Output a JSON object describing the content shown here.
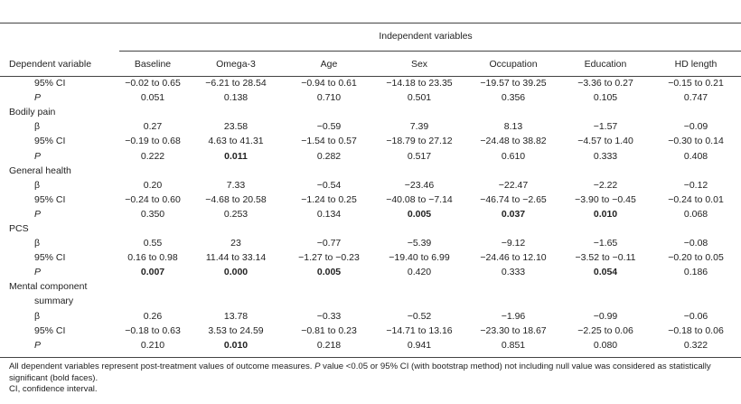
{
  "header": {
    "independent_label": "Independent variables",
    "dependent_label": "Dependent variable",
    "columns": [
      "Baseline",
      "Omega-3",
      "Age",
      "Sex",
      "Occupation",
      "Education",
      "HD length"
    ]
  },
  "rows": [
    {
      "type": "stat",
      "label": "95% CI",
      "italic": false,
      "values": [
        "−0.02 to 0.65",
        "−6.21 to 28.54",
        "−0.94 to 0.61",
        "−14.18 to 23.35",
        "−19.57 to 39.25",
        "−3.36 to 0.27",
        "−0.15 to 0.21"
      ],
      "bold": [
        false,
        false,
        false,
        false,
        false,
        false,
        false
      ]
    },
    {
      "type": "stat",
      "label": "P",
      "italic": true,
      "values": [
        "0.051",
        "0.138",
        "0.710",
        "0.501",
        "0.356",
        "0.105",
        "0.747"
      ],
      "bold": [
        false,
        false,
        false,
        false,
        false,
        false,
        false
      ]
    },
    {
      "type": "section",
      "label": "Bodily pain"
    },
    {
      "type": "stat",
      "label": "β",
      "italic": false,
      "values": [
        "0.27",
        "23.58",
        "−0.59",
        "7.39",
        "8.13",
        "−1.57",
        "−0.09"
      ],
      "bold": [
        false,
        false,
        false,
        false,
        false,
        false,
        false
      ]
    },
    {
      "type": "stat",
      "label": "95% CI",
      "italic": false,
      "values": [
        "−0.19 to 0.68",
        "4.63 to 41.31",
        "−1.54 to 0.57",
        "−18.79 to 27.12",
        "−24.48 to 38.82",
        "−4.57 to 1.40",
        "−0.30 to 0.14"
      ],
      "bold": [
        false,
        false,
        false,
        false,
        false,
        false,
        false
      ]
    },
    {
      "type": "stat",
      "label": "P",
      "italic": true,
      "values": [
        "0.222",
        "0.011",
        "0.282",
        "0.517",
        "0.610",
        "0.333",
        "0.408"
      ],
      "bold": [
        false,
        true,
        false,
        false,
        false,
        false,
        false
      ]
    },
    {
      "type": "section",
      "label": "General health"
    },
    {
      "type": "stat",
      "label": "β",
      "italic": false,
      "values": [
        "0.20",
        "7.33",
        "−0.54",
        "−23.46",
        "−22.47",
        "−2.22",
        "−0.12"
      ],
      "bold": [
        false,
        false,
        false,
        false,
        false,
        false,
        false
      ]
    },
    {
      "type": "stat",
      "label": "95% CI",
      "italic": false,
      "values": [
        "−0.24 to 0.60",
        "−4.68 to 20.58",
        "−1.24 to 0.25",
        "−40.08 to −7.14",
        "−46.74 to −2.65",
        "−3.90 to −0.45",
        "−0.24 to 0.01"
      ],
      "bold": [
        false,
        false,
        false,
        false,
        false,
        false,
        false
      ]
    },
    {
      "type": "stat",
      "label": "P",
      "italic": true,
      "values": [
        "0.350",
        "0.253",
        "0.134",
        "0.005",
        "0.037",
        "0.010",
        "0.068"
      ],
      "bold": [
        false,
        false,
        false,
        true,
        true,
        true,
        false
      ]
    },
    {
      "type": "section",
      "label": "PCS"
    },
    {
      "type": "stat",
      "label": "β",
      "italic": false,
      "values": [
        "0.55",
        "23",
        "−0.77",
        "−5.39",
        "−9.12",
        "−1.65",
        "−0.08"
      ],
      "bold": [
        false,
        false,
        false,
        false,
        false,
        false,
        false
      ]
    },
    {
      "type": "stat",
      "label": "95% CI",
      "italic": false,
      "values": [
        "0.16 to 0.98",
        "11.44 to 33.14",
        "−1.27 to −0.23",
        "−19.40 to 6.99",
        "−24.46 to 12.10",
        "−3.52 to −0.11",
        "−0.20 to 0.05"
      ],
      "bold": [
        false,
        false,
        false,
        false,
        false,
        false,
        false
      ]
    },
    {
      "type": "stat",
      "label": "P",
      "italic": true,
      "values": [
        "0.007",
        "0.000",
        "0.005",
        "0.420",
        "0.333",
        "0.054",
        "0.186"
      ],
      "bold": [
        true,
        true,
        true,
        false,
        false,
        true,
        false
      ]
    },
    {
      "type": "section",
      "label": "Mental component"
    },
    {
      "type": "subsection",
      "label": "summary"
    },
    {
      "type": "stat",
      "label": "β",
      "italic": false,
      "values": [
        "0.26",
        "13.78",
        "−0.33",
        "−0.52",
        "−1.96",
        "−0.99",
        "−0.06"
      ],
      "bold": [
        false,
        false,
        false,
        false,
        false,
        false,
        false
      ]
    },
    {
      "type": "stat",
      "label": "95% CI",
      "italic": false,
      "values": [
        "−0.18 to 0.63",
        "3.53 to 24.59",
        "−0.81 to 0.23",
        "−14.71 to 13.16",
        "−23.30 to 18.67",
        "−2.25 to 0.06",
        "−0.18 to 0.06"
      ],
      "bold": [
        false,
        false,
        false,
        false,
        false,
        false,
        false
      ]
    },
    {
      "type": "stat",
      "label": "P",
      "italic": true,
      "values": [
        "0.210",
        "0.010",
        "0.218",
        "0.941",
        "0.851",
        "0.080",
        "0.322"
      ],
      "bold": [
        false,
        true,
        false,
        false,
        false,
        false,
        false
      ]
    }
  ],
  "footnote": {
    "line1_a": "All dependent variables represent post-treatment values of outcome measures. ",
    "line1_p": "P",
    "line1_b": " value <0.05 or 95% CI (with bootstrap method) not including null value was considered as statistically significant (bold faces).",
    "line2": "CI, confidence interval."
  }
}
